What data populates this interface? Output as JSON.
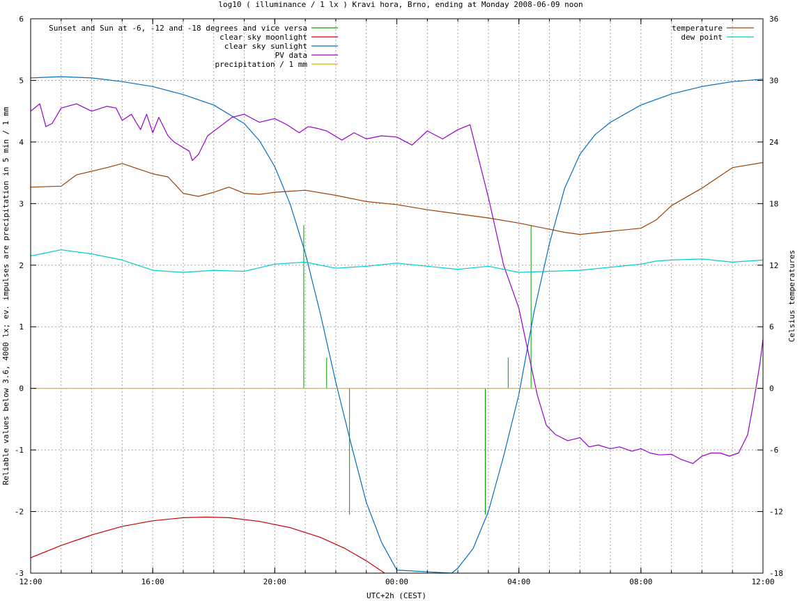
{
  "chart_data": {
    "type": "line",
    "title": "log10 ( illuminance / 1 lx ) Kravi hora, Brno, ending at Monday 2008-06-09 noon",
    "xlabel": "UTC+2h (CEST)",
    "ylabel": "Reliable values below 3.6, 4000 lx; ev. impulses are precipitation in 5 min / 1 mm",
    "y2label": "Celsius temperatures",
    "xlim": [
      0,
      24
    ],
    "ylim": [
      -3,
      6
    ],
    "y2lim": [
      -18,
      36
    ],
    "x_ticks": [
      {
        "value": 0,
        "label": "12:00"
      },
      {
        "value": 4,
        "label": "16:00"
      },
      {
        "value": 8,
        "label": "20:00"
      },
      {
        "value": 12,
        "label": "00:00"
      },
      {
        "value": 16,
        "label": "04:00"
      },
      {
        "value": 20,
        "label": "08:00"
      },
      {
        "value": 24,
        "label": "12:00"
      }
    ],
    "y_ticks": [
      {
        "value": -3,
        "label": "-3"
      },
      {
        "value": -2,
        "label": "-2"
      },
      {
        "value": -1,
        "label": "-1"
      },
      {
        "value": 0,
        "label": "0"
      },
      {
        "value": 1,
        "label": "1"
      },
      {
        "value": 2,
        "label": "2"
      },
      {
        "value": 3,
        "label": "3"
      },
      {
        "value": 4,
        "label": "4"
      },
      {
        "value": 5,
        "label": "5"
      },
      {
        "value": 6,
        "label": "6"
      }
    ],
    "y2_ticks": [
      {
        "value": -18,
        "label": "-18"
      },
      {
        "value": -12,
        "label": "-12"
      },
      {
        "value": -6,
        "label": "-6"
      },
      {
        "value": 0,
        "label": "0"
      },
      {
        "value": 6,
        "label": "6"
      },
      {
        "value": 12,
        "label": "12"
      },
      {
        "value": 18,
        "label": "18"
      },
      {
        "value": 24,
        "label": "24"
      },
      {
        "value": 30,
        "label": "30"
      },
      {
        "value": 36,
        "label": "36"
      }
    ],
    "grid": true,
    "legend_left_placement": "top-left",
    "legend_right_placement": "top-right",
    "series": [
      {
        "name": "Sunset and Sun at -6, -12 and -18 degrees and vice versa",
        "axis": "y",
        "color": "#00a000",
        "kind": "impulses",
        "points": [
          [
            8.95,
            2.65
          ],
          [
            9.7,
            0.5
          ],
          [
            10.45,
            -2.05
          ],
          [
            14.9,
            -2.05
          ],
          [
            15.65,
            0.5
          ],
          [
            16.4,
            2.65
          ]
        ]
      },
      {
        "name": "clear sky moonlight",
        "axis": "y",
        "color": "#cc0000",
        "kind": "line",
        "points": [
          [
            0,
            -2.75
          ],
          [
            1,
            -2.55
          ],
          [
            2,
            -2.38
          ],
          [
            3,
            -2.24
          ],
          [
            4,
            -2.15
          ],
          [
            5,
            -2.1
          ],
          [
            5.75,
            -2.09
          ],
          [
            6.5,
            -2.1
          ],
          [
            7.5,
            -2.16
          ],
          [
            8.5,
            -2.26
          ],
          [
            9.5,
            -2.42
          ],
          [
            10.3,
            -2.6
          ],
          [
            11,
            -2.8
          ],
          [
            11.6,
            -3.0
          ]
        ]
      },
      {
        "name": "clear sky sunlight",
        "axis": "y",
        "color": "#0070c0",
        "kind": "line",
        "points": [
          [
            0,
            5.04
          ],
          [
            1,
            5.06
          ],
          [
            2,
            5.04
          ],
          [
            3,
            4.98
          ],
          [
            4,
            4.9
          ],
          [
            5,
            4.77
          ],
          [
            6,
            4.6
          ],
          [
            7,
            4.3
          ],
          [
            7.5,
            4.02
          ],
          [
            8,
            3.6
          ],
          [
            8.5,
            3.0
          ],
          [
            9,
            2.2
          ],
          [
            9.5,
            1.2
          ],
          [
            10,
            0.1
          ],
          [
            10.5,
            -0.9
          ],
          [
            11,
            -1.85
          ],
          [
            11.5,
            -2.5
          ],
          [
            12,
            -2.95
          ],
          [
            13.8,
            -3.0
          ],
          [
            14,
            -2.92
          ],
          [
            14.5,
            -2.6
          ],
          [
            15,
            -2.0
          ],
          [
            15.5,
            -1.1
          ],
          [
            16,
            -0.1
          ],
          [
            16.5,
            1.25
          ],
          [
            17,
            2.35
          ],
          [
            17.5,
            3.25
          ],
          [
            18,
            3.8
          ],
          [
            18.5,
            4.12
          ],
          [
            19,
            4.32
          ],
          [
            20,
            4.6
          ],
          [
            21,
            4.78
          ],
          [
            22,
            4.9
          ],
          [
            23,
            4.98
          ],
          [
            24,
            5.02
          ]
        ]
      },
      {
        "name": "PV data",
        "axis": "y",
        "color": "#9900cc",
        "kind": "line",
        "points": [
          [
            0,
            4.5
          ],
          [
            0.3,
            4.62
          ],
          [
            0.5,
            4.25
          ],
          [
            0.7,
            4.3
          ],
          [
            1,
            4.55
          ],
          [
            1.5,
            4.62
          ],
          [
            2,
            4.5
          ],
          [
            2.5,
            4.58
          ],
          [
            2.8,
            4.55
          ],
          [
            3,
            4.35
          ],
          [
            3.3,
            4.45
          ],
          [
            3.6,
            4.2
          ],
          [
            3.8,
            4.45
          ],
          [
            4,
            4.15
          ],
          [
            4.2,
            4.4
          ],
          [
            4.5,
            4.1
          ],
          [
            4.7,
            4.0
          ],
          [
            5.2,
            3.85
          ],
          [
            5.3,
            3.7
          ],
          [
            5.5,
            3.8
          ],
          [
            5.8,
            4.1
          ],
          [
            6.2,
            4.25
          ],
          [
            6.6,
            4.4
          ],
          [
            7,
            4.45
          ],
          [
            7.5,
            4.32
          ],
          [
            8,
            4.38
          ],
          [
            8.4,
            4.28
          ],
          [
            8.8,
            4.15
          ],
          [
            9.1,
            4.25
          ],
          [
            9.4,
            4.22
          ],
          [
            9.7,
            4.18
          ],
          [
            10.2,
            4.03
          ],
          [
            10.6,
            4.15
          ],
          [
            11,
            4.05
          ],
          [
            11.5,
            4.1
          ],
          [
            12,
            4.08
          ],
          [
            12.5,
            3.95
          ],
          [
            13,
            4.18
          ],
          [
            13.5,
            4.05
          ],
          [
            14,
            4.2
          ],
          [
            14.4,
            4.28
          ],
          [
            15,
            3.1
          ],
          [
            15.5,
            2.0
          ],
          [
            16,
            1.3
          ],
          [
            16.3,
            0.6
          ],
          [
            16.6,
            -0.1
          ],
          [
            16.9,
            -0.6
          ],
          [
            17.2,
            -0.75
          ],
          [
            17.6,
            -0.85
          ],
          [
            18,
            -0.8
          ],
          [
            18.3,
            -0.95
          ],
          [
            18.6,
            -0.92
          ],
          [
            19,
            -0.98
          ],
          [
            19.3,
            -0.95
          ],
          [
            19.7,
            -1.02
          ],
          [
            20,
            -0.98
          ],
          [
            20.3,
            -1.05
          ],
          [
            20.6,
            -1.08
          ],
          [
            21,
            -1.07
          ],
          [
            21.3,
            -1.15
          ],
          [
            21.7,
            -1.22
          ],
          [
            22,
            -1.1
          ],
          [
            22.3,
            -1.05
          ],
          [
            22.6,
            -1.05
          ],
          [
            22.9,
            -1.1
          ],
          [
            23.2,
            -1.05
          ],
          [
            23.5,
            -0.75
          ],
          [
            23.7,
            -0.2
          ],
          [
            23.9,
            0.4
          ],
          [
            24,
            0.8
          ]
        ]
      },
      {
        "name": "precipitation / 1 mm",
        "axis": "y",
        "color": "#e0b000",
        "kind": "line",
        "points": [
          [
            0,
            0
          ],
          [
            24,
            0
          ]
        ]
      },
      {
        "name": "temperature",
        "axis": "y2",
        "color": "#a04000",
        "kind": "line",
        "points": [
          [
            0,
            19.6
          ],
          [
            1,
            19.7
          ],
          [
            1.5,
            20.8
          ],
          [
            2.5,
            21.5
          ],
          [
            3,
            21.9
          ],
          [
            3.5,
            21.4
          ],
          [
            4,
            20.9
          ],
          [
            4.5,
            20.6
          ],
          [
            5,
            19.0
          ],
          [
            5.5,
            18.7
          ],
          [
            6,
            19.1
          ],
          [
            6.5,
            19.6
          ],
          [
            7,
            19.0
          ],
          [
            7.5,
            18.9
          ],
          [
            8,
            19.1
          ],
          [
            8.5,
            19.2
          ],
          [
            9,
            19.3
          ],
          [
            10,
            18.8
          ],
          [
            11,
            18.2
          ],
          [
            12,
            17.9
          ],
          [
            13,
            17.4
          ],
          [
            14,
            17.0
          ],
          [
            15,
            16.6
          ],
          [
            16,
            16.1
          ],
          [
            16.5,
            15.8
          ],
          [
            17,
            15.5
          ],
          [
            17.5,
            15.2
          ],
          [
            18,
            15.0
          ],
          [
            19,
            15.3
          ],
          [
            20,
            15.6
          ],
          [
            20.5,
            16.4
          ],
          [
            21,
            17.8
          ],
          [
            22,
            19.5
          ],
          [
            23,
            21.5
          ],
          [
            24,
            22.0
          ]
        ]
      },
      {
        "name": "dew point",
        "axis": "y2",
        "color": "#00cccc",
        "kind": "line",
        "points": [
          [
            0,
            12.9
          ],
          [
            1,
            13.5
          ],
          [
            2,
            13.1
          ],
          [
            3,
            12.5
          ],
          [
            4,
            11.5
          ],
          [
            5,
            11.3
          ],
          [
            6,
            11.5
          ],
          [
            7,
            11.4
          ],
          [
            8,
            12.1
          ],
          [
            9,
            12.3
          ],
          [
            10,
            11.7
          ],
          [
            11,
            11.9
          ],
          [
            12,
            12.2
          ],
          [
            13,
            11.9
          ],
          [
            14,
            11.6
          ],
          [
            15,
            11.9
          ],
          [
            16,
            11.3
          ],
          [
            17,
            11.4
          ],
          [
            18,
            11.5
          ],
          [
            19,
            11.8
          ],
          [
            20,
            12.1
          ],
          [
            20.5,
            12.4
          ],
          [
            21,
            12.5
          ],
          [
            22,
            12.6
          ],
          [
            23,
            12.3
          ],
          [
            24,
            12.5
          ]
        ]
      }
    ]
  }
}
